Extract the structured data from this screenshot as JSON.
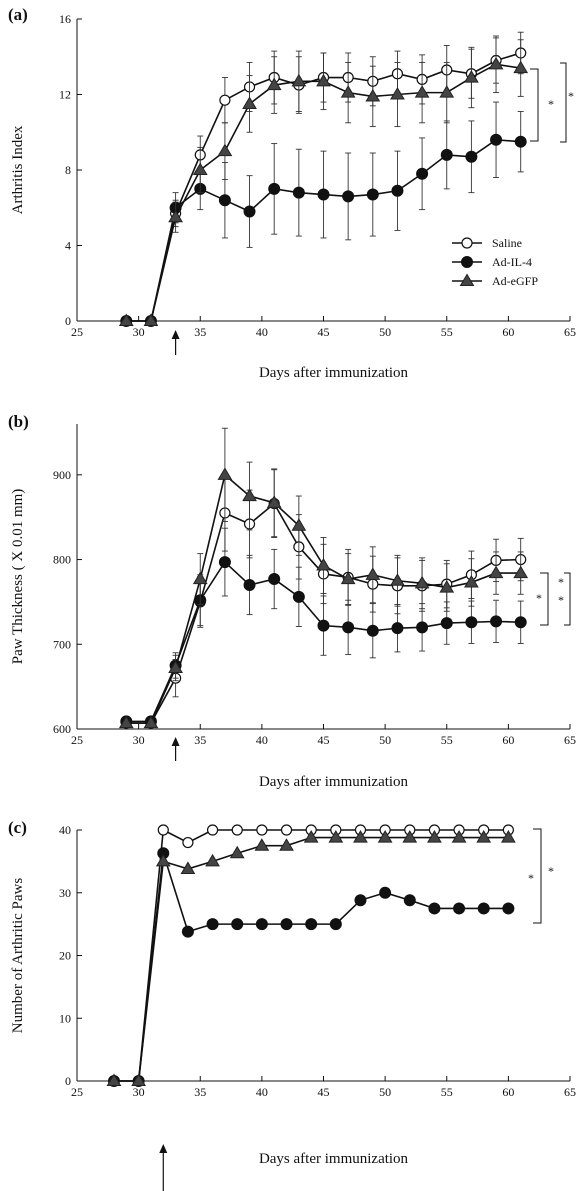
{
  "chart_data": [
    {
      "panel_label": "(a)",
      "type": "line",
      "xlabel": "Days after immunization",
      "ylabel": "Arthritis Index",
      "xlim": [
        25,
        65
      ],
      "ylim": [
        0,
        16
      ],
      "xticks": [
        25,
        30,
        35,
        40,
        45,
        50,
        55,
        60,
        65
      ],
      "yticks": [
        0,
        4,
        8,
        12,
        16
      ],
      "arrow_x": 33,
      "legend": {
        "position": "bottom-right"
      },
      "series": [
        {
          "name": "Saline",
          "marker": "circle-open",
          "x": [
            29,
            31,
            33,
            35,
            37,
            39,
            41,
            43,
            45,
            47,
            49,
            51,
            53,
            55,
            57,
            59,
            61
          ],
          "y": [
            0,
            0,
            5.7,
            8.8,
            11.7,
            12.4,
            12.9,
            12.5,
            12.9,
            12.9,
            12.7,
            13.1,
            12.8,
            13.3,
            13.1,
            13.8,
            14.2
          ],
          "err": [
            0,
            0,
            0.7,
            1.0,
            1.2,
            1.3,
            1.4,
            1.5,
            1.3,
            1.3,
            1.3,
            1.2,
            1.3,
            1.3,
            1.3,
            1.2,
            1.1
          ]
        },
        {
          "name": "Ad-IL-4",
          "marker": "circle-filled",
          "x": [
            29,
            31,
            33,
            35,
            37,
            39,
            41,
            43,
            45,
            47,
            49,
            51,
            53,
            55,
            57,
            59,
            61
          ],
          "y": [
            0,
            0,
            6.0,
            7.0,
            6.4,
            5.8,
            7.0,
            6.8,
            6.7,
            6.6,
            6.7,
            6.9,
            7.8,
            8.8,
            8.7,
            9.6,
            9.5
          ],
          "err": [
            0,
            0,
            0.8,
            1.1,
            2.0,
            1.9,
            2.4,
            2.3,
            2.3,
            2.3,
            2.2,
            2.1,
            1.9,
            1.8,
            1.9,
            2.0,
            1.6
          ]
        },
        {
          "name": "Ad-eGFP",
          "marker": "triangle-filled",
          "x": [
            29,
            31,
            33,
            35,
            37,
            39,
            41,
            43,
            45,
            47,
            49,
            51,
            53,
            55,
            57,
            59,
            61
          ],
          "y": [
            0,
            0,
            5.5,
            8.0,
            9.0,
            11.5,
            12.5,
            12.7,
            12.7,
            12.1,
            11.9,
            12.0,
            12.1,
            12.1,
            12.9,
            13.6,
            13.4
          ],
          "err": [
            0,
            0,
            0.8,
            1.2,
            1.5,
            1.5,
            1.5,
            1.6,
            1.5,
            1.6,
            1.6,
            1.7,
            1.6,
            1.6,
            1.6,
            1.5,
            1.5
          ]
        }
      ],
      "significance": [
        "*",
        "*"
      ]
    },
    {
      "panel_label": "(b)",
      "type": "line",
      "xlabel": "Days after immunization",
      "ylabel": "Paw Thickness ( X 0.01 mm)",
      "xlim": [
        25,
        65
      ],
      "ylim": [
        600,
        960
      ],
      "xticks": [
        25,
        30,
        35,
        40,
        45,
        50,
        55,
        60,
        65
      ],
      "yticks": [
        600,
        700,
        800,
        900
      ],
      "arrow_x": 33,
      "series": [
        {
          "name": "Saline",
          "marker": "circle-open",
          "x": [
            29,
            31,
            33,
            35,
            37,
            39,
            41,
            43,
            45,
            47,
            49,
            51,
            53,
            55,
            57,
            59,
            61
          ],
          "y": [
            607,
            607,
            660,
            750,
            855,
            842,
            866,
            815,
            783,
            779,
            771,
            769,
            769,
            771,
            782,
            799,
            800
          ],
          "err": [
            0,
            0,
            22,
            30,
            45,
            40,
            40,
            38,
            35,
            33,
            33,
            33,
            30,
            28,
            28,
            25,
            25
          ]
        },
        {
          "name": "Ad-IL-4",
          "marker": "circle-filled",
          "x": [
            29,
            31,
            33,
            35,
            37,
            39,
            41,
            43,
            45,
            47,
            49,
            51,
            53,
            55,
            57,
            59,
            61
          ],
          "y": [
            609,
            609,
            675,
            752,
            797,
            770,
            777,
            756,
            722,
            720,
            716,
            719,
            720,
            725,
            726,
            727,
            726
          ],
          "err": [
            0,
            0,
            15,
            30,
            40,
            35,
            35,
            35,
            35,
            32,
            32,
            28,
            28,
            25,
            25,
            25,
            25
          ]
        },
        {
          "name": "Ad-eGFP",
          "marker": "triangle-filled",
          "x": [
            29,
            31,
            33,
            35,
            37,
            39,
            41,
            43,
            45,
            47,
            49,
            51,
            53,
            55,
            57,
            59,
            61
          ],
          "y": [
            607,
            607,
            672,
            777,
            900,
            875,
            867,
            840,
            793,
            777,
            782,
            775,
            772,
            767,
            773,
            784,
            784
          ],
          "err": [
            0,
            0,
            15,
            30,
            55,
            40,
            40,
            35,
            33,
            30,
            33,
            30,
            30,
            28,
            28,
            25,
            25
          ]
        }
      ],
      "significance": [
        "*",
        "*",
        "*"
      ]
    },
    {
      "panel_label": "(c)",
      "type": "line",
      "xlabel": "Days after immunization",
      "ylabel": "Number of Arthritic Paws",
      "xlim": [
        25,
        65
      ],
      "ylim": [
        0,
        40
      ],
      "xticks": [
        25,
        30,
        35,
        40,
        45,
        50,
        55,
        60,
        65
      ],
      "yticks": [
        0,
        10,
        20,
        30,
        40
      ],
      "arrow_x": 32,
      "series": [
        {
          "name": "Saline",
          "marker": "circle-open",
          "x": [
            28,
            30,
            32,
            34,
            36,
            38,
            40,
            42,
            44,
            46,
            48,
            50,
            52,
            54,
            56,
            58,
            60
          ],
          "y": [
            0,
            0,
            40,
            38,
            40,
            40,
            40,
            40,
            40,
            40,
            40,
            40,
            40,
            40,
            40,
            40,
            40
          ]
        },
        {
          "name": "Ad-IL-4",
          "marker": "circle-filled",
          "x": [
            28,
            30,
            32,
            34,
            36,
            38,
            40,
            42,
            44,
            46,
            48,
            50,
            52,
            54,
            56,
            58,
            60
          ],
          "y": [
            0,
            0,
            36.3,
            23.8,
            25,
            25,
            25,
            25,
            25,
            25,
            28.8,
            30,
            28.8,
            27.5,
            27.5,
            27.5,
            27.5
          ]
        },
        {
          "name": "Ad-eGFP",
          "marker": "triangle-filled",
          "x": [
            28,
            30,
            32,
            34,
            36,
            38,
            40,
            42,
            44,
            46,
            48,
            50,
            52,
            54,
            56,
            58,
            60
          ],
          "y": [
            0,
            0,
            35,
            33.8,
            35,
            36.3,
            37.5,
            37.5,
            38.8,
            38.8,
            38.8,
            38.8,
            38.8,
            38.8,
            38.8,
            38.8,
            38.8
          ]
        }
      ],
      "significance": [
        "*",
        "*"
      ]
    }
  ]
}
